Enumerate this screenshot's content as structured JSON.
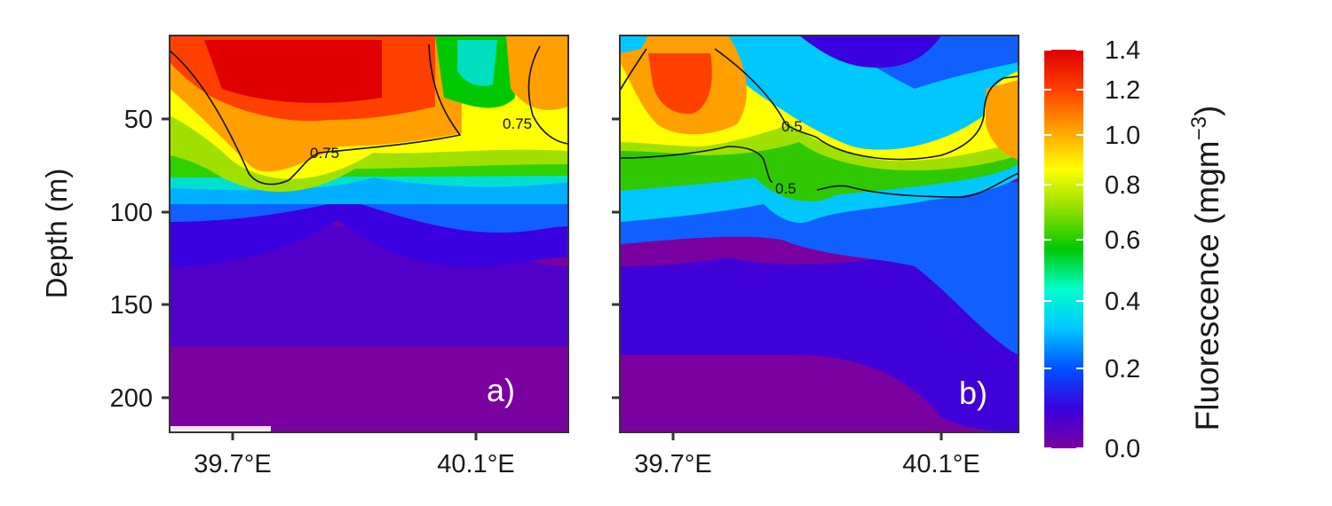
{
  "chart_data": [
    {
      "type": "heatmap",
      "panel_label": "a)",
      "ylabel": "Depth (m)",
      "yticks": [
        "50",
        "100",
        "150",
        "200"
      ],
      "xticks": [
        "39.7°E",
        "40.1°E"
      ],
      "contours": [
        {
          "level": 0.75,
          "labels": [
            "0.75",
            "0.75"
          ]
        }
      ]
    },
    {
      "type": "heatmap",
      "panel_label": "b)",
      "xticks": [
        "39.7°E",
        "40.1°E"
      ],
      "contours": [
        {
          "level": 0.5,
          "labels": [
            "0.5",
            "0.5"
          ]
        }
      ]
    }
  ],
  "colorbar": {
    "title_base": "Fluorescence (mgm",
    "title_exp": "−3",
    "title_close": ")",
    "ticks": [
      "0.0",
      "0.2",
      "0.4",
      "0.6",
      "0.8",
      "1.0",
      "1.2",
      "1.4"
    ],
    "colors": [
      "#7a00a0",
      "#3a00e0",
      "#0050ff",
      "#00c8ff",
      "#00ffcc",
      "#00c800",
      "#90e000",
      "#ffff00",
      "#ffa000",
      "#ff4000",
      "#dd0000"
    ]
  }
}
